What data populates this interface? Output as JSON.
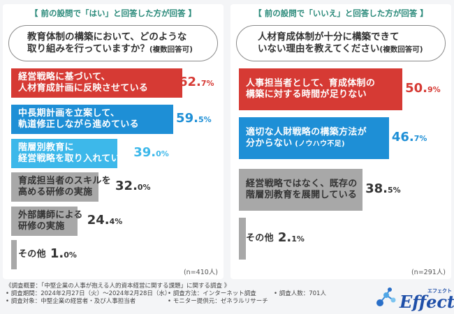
{
  "left": {
    "condition": "【 前の設問で「はい」と回答した方が回答 】",
    "question_line1": "教育体制の構築において、どのような",
    "question_line2": "取り組みを行っていますか？",
    "question_note": "(複数回答可)",
    "n": "(n=410人)"
  },
  "right": {
    "condition": "【 前の設問で「いいえ」と回答した方が回答 】",
    "question_line1": "人材育成体制が十分に構築できて",
    "question_line2": "いない理由を教えてください",
    "question_note": "(複数回答可)",
    "n": "(n=291人)"
  },
  "footer": {
    "overview": "《調査概要：「中堅企業の人事が抱える人的資本経営に関する課題」に関する調査 》",
    "period": "• 調査期間：2024年2月27日（火）～2024年2月28日（水）",
    "method": "• 調査方法：インターネット調査",
    "count": "• 調査人数：701人",
    "target": "• 調査対象：中堅企業の経営者・及び人事担当者",
    "monitor": "• モニター提供元：ゼネラルリサーチ"
  },
  "logo": {
    "word": "Effect",
    "kana": "エフェクト"
  },
  "colors": {
    "red": "#d63a34",
    "blue": "#1e8fd6",
    "lightblue": "#3db8ea",
    "gray": "#a8a8a8",
    "green": "#2a8a7a"
  },
  "chart_data": [
    {
      "type": "bar",
      "orientation": "horizontal",
      "xlim": [
        0,
        100
      ],
      "categories": [
        "経営戦略に基づいて、\n人材育成計画に反映させている",
        "中長期計画を立案して、\n軌道修正しながら進めている",
        "階層別教育に\n経営戦略を取り入れている",
        "育成担当者のスキルを\n高める研修の実施",
        "外部講師による\n研修の実施",
        "その他"
      ],
      "values": [
        62.7,
        59.5,
        39.0,
        32.0,
        24.4,
        1.0
      ],
      "value_labels": [
        [
          "62.",
          "7%"
        ],
        [
          "59.",
          "5%"
        ],
        [
          "39.",
          "0%"
        ],
        [
          "32.",
          "0%"
        ],
        [
          "24.",
          "4%"
        ],
        [
          "1.",
          "0%"
        ]
      ],
      "bar_colors": [
        "#d63a34",
        "#1e8fd6",
        "#3db8ea",
        "#a8a8a8",
        "#a8a8a8",
        "#a8a8a8"
      ],
      "pct_colors": [
        "#d63a34",
        "#1e8fd6",
        "#3db8ea",
        "#333333",
        "#333333",
        "#333333"
      ],
      "label_tones": [
        "light",
        "light",
        "light",
        "dark",
        "dark",
        "dark"
      ]
    },
    {
      "type": "bar",
      "orientation": "horizontal",
      "xlim": [
        0,
        100
      ],
      "categories": [
        "人事担当者として、育成体制の\n構築に対する時間が足りない",
        "適切な人財戦略の構築方法が\n分からない",
        "経営戦略ではなく、既存の\n階層別教育を展開している",
        "その他"
      ],
      "category_notes": [
        "",
        "(ノウハウ不足)",
        "",
        ""
      ],
      "values": [
        50.9,
        46.7,
        38.5,
        2.1
      ],
      "value_labels": [
        [
          "50.",
          "9%"
        ],
        [
          "46.",
          "7%"
        ],
        [
          "38.",
          "5%"
        ],
        [
          "2.",
          "1%"
        ]
      ],
      "bar_colors": [
        "#d63a34",
        "#1e8fd6",
        "#a8a8a8",
        "#a8a8a8"
      ],
      "pct_colors": [
        "#d63a34",
        "#1e8fd6",
        "#333333",
        "#333333"
      ],
      "label_tones": [
        "light",
        "light",
        "dark",
        "dark"
      ]
    }
  ]
}
